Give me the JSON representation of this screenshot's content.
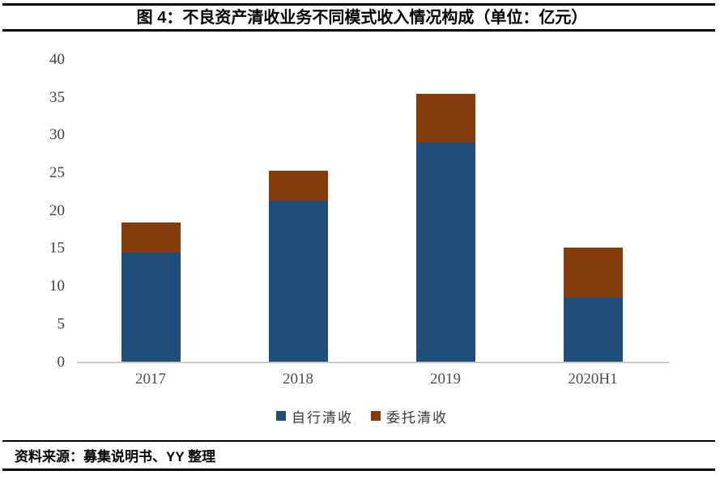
{
  "header": {
    "title": "图 4：不良资产清收业务不同模式收入情况构成（单位：亿元）"
  },
  "chart_data": {
    "type": "bar",
    "stacked": true,
    "title": "图 4：不良资产清收业务不同模式收入情况构成（单位：亿元）",
    "unit_label": "亿元",
    "categories": [
      "2017",
      "2018",
      "2019",
      "2020H1"
    ],
    "series": [
      {
        "name": "自行清收",
        "color": "#1F4E79",
        "values": [
          14.5,
          21.4,
          29.1,
          8.5
        ]
      },
      {
        "name": "委托清收",
        "color": "#843C0C",
        "values": [
          4.0,
          3.9,
          6.4,
          6.7
        ]
      }
    ],
    "totals": [
      18.5,
      25.3,
      35.5,
      15.2
    ],
    "xlabel": "",
    "ylabel": "",
    "ylim": [
      0,
      40
    ],
    "yticks": [
      0,
      5,
      10,
      15,
      20,
      25,
      30,
      35,
      40
    ],
    "grid": false,
    "legend_position": "bottom",
    "axis_line_color": "#C9C9C9"
  },
  "footer": {
    "source": "资料来源：募集说明书、YY 整理"
  }
}
